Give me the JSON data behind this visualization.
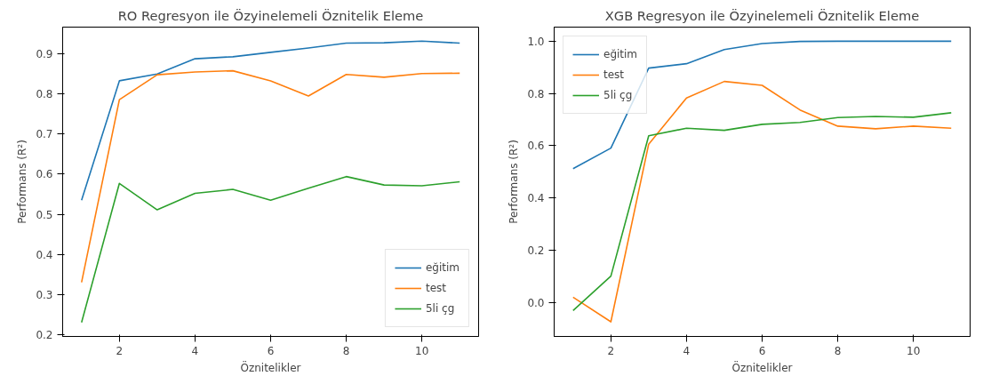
{
  "chart_data": [
    {
      "type": "line",
      "title": "RO Regresyon ile Özyinelemeli Öznitelik Eleme",
      "xlabel": "Öznitelikler",
      "ylabel": "Performans (R²)",
      "x": [
        1,
        2,
        3,
        4,
        5,
        6,
        7,
        8,
        9,
        10,
        11
      ],
      "series": [
        {
          "name": "eğitim",
          "color": "#1f77b4",
          "values": [
            0.535,
            0.833,
            0.85,
            0.888,
            0.893,
            0.904,
            0.915,
            0.927,
            0.928,
            0.932,
            0.927
          ]
        },
        {
          "name": "test",
          "color": "#ff7f0e",
          "values": [
            0.33,
            0.786,
            0.848,
            0.855,
            0.858,
            0.833,
            0.795,
            0.849,
            0.842,
            0.851,
            0.852
          ]
        },
        {
          "name": "5li çg",
          "color": "#2ca02c",
          "values": [
            0.23,
            0.577,
            0.511,
            0.552,
            0.562,
            0.535,
            0.565,
            0.594,
            0.573,
            0.571,
            0.581
          ]
        }
      ],
      "xlim": [
        0.5,
        11.5
      ],
      "ylim": [
        0.195,
        0.967
      ],
      "xticks": [
        2,
        4,
        6,
        8,
        10
      ],
      "yticks": [
        0.2,
        0.3,
        0.4,
        0.5,
        0.6,
        0.7,
        0.8,
        0.9
      ],
      "legend": "bottom right",
      "grid": false
    },
    {
      "type": "line",
      "title": "XGB Regresyon ile Özyinelemeli Öznitelik Eleme",
      "xlabel": "Öznitelikler",
      "ylabel": "Performans (R²)",
      "x": [
        1,
        2,
        3,
        4,
        5,
        6,
        7,
        8,
        9,
        10,
        11
      ],
      "series": [
        {
          "name": "eğitim",
          "color": "#1f77b4",
          "values": [
            0.512,
            0.591,
            0.897,
            0.914,
            0.968,
            0.991,
            0.999,
            1.0,
            1.0,
            1.0,
            1.0
          ]
        },
        {
          "name": "test",
          "color": "#ff7f0e",
          "values": [
            0.02,
            -0.074,
            0.606,
            0.783,
            0.846,
            0.831,
            0.737,
            0.675,
            0.665,
            0.675,
            0.667
          ]
        },
        {
          "name": "5li çg",
          "color": "#2ca02c",
          "values": [
            -0.031,
            0.101,
            0.638,
            0.667,
            0.659,
            0.682,
            0.689,
            0.708,
            0.712,
            0.709,
            0.726
          ]
        }
      ],
      "xlim": [
        0.5,
        11.5
      ],
      "ylim": [
        -0.13,
        1.054
      ],
      "xticks": [
        2,
        4,
        6,
        8,
        10
      ],
      "yticks": [
        {
          "value": 0,
          "label": "0.0"
        },
        0.2,
        0.4,
        0.6,
        0.8,
        {
          "value": 1,
          "label": "1.0"
        }
      ],
      "legend": "top left",
      "grid": false
    }
  ]
}
